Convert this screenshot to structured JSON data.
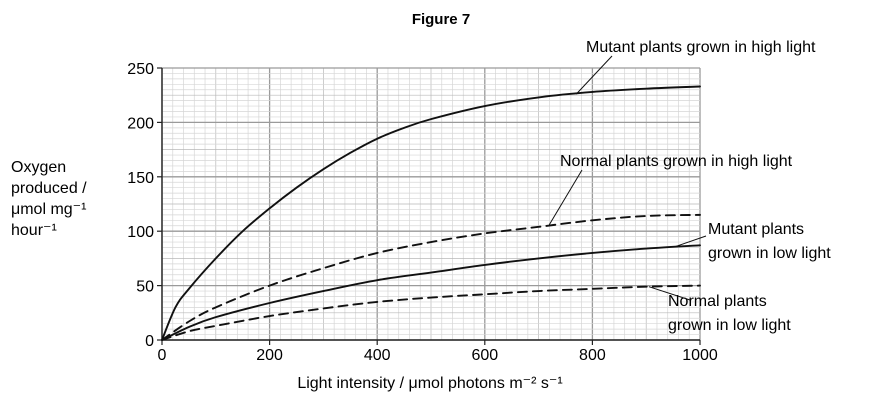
{
  "chart_data": {
    "type": "line",
    "title": "Figure 7",
    "xlabel": "Light intensity / μmol photons m⁻² s⁻¹",
    "ylabel_lines": [
      "Oxygen",
      "produced /",
      "μmol mg⁻¹",
      "hour⁻¹"
    ],
    "xlim": [
      0,
      1000
    ],
    "ylim": [
      0,
      250
    ],
    "x_ticks": [
      0,
      200,
      400,
      600,
      800,
      1000
    ],
    "y_ticks": [
      0,
      50,
      100,
      150,
      200,
      250
    ],
    "grid": true,
    "series": [
      {
        "name": "Mutant plants grown in high light",
        "label_lines": [
          "Mutant plants grown in high light"
        ],
        "style": "solid",
        "x": [
          0,
          25,
          50,
          100,
          150,
          200,
          250,
          300,
          350,
          400,
          450,
          500,
          600,
          700,
          800,
          900,
          1000
        ],
        "y": [
          0,
          30,
          47,
          75,
          100,
          121,
          140,
          157,
          172,
          185,
          195,
          203,
          215,
          223,
          228,
          231,
          233
        ]
      },
      {
        "name": "Normal plants grown in high light",
        "label_lines": [
          "Normal plants grown in high light"
        ],
        "style": "dashed",
        "x": [
          0,
          50,
          100,
          200,
          300,
          400,
          500,
          600,
          700,
          800,
          900,
          1000
        ],
        "y": [
          0,
          17,
          30,
          50,
          66,
          80,
          90,
          98,
          104,
          110,
          114,
          115
        ]
      },
      {
        "name": "Mutant plants grown in low light",
        "label_lines": [
          "Mutant plants",
          "grown in low light"
        ],
        "style": "solid",
        "x": [
          0,
          50,
          100,
          200,
          300,
          400,
          500,
          600,
          700,
          800,
          900,
          1000
        ],
        "y": [
          0,
          12,
          21,
          34,
          45,
          55,
          62,
          69,
          75,
          80,
          84,
          87
        ]
      },
      {
        "name": "Normal plants grown in low light",
        "label_lines": [
          "Normal plants",
          "grown in low light"
        ],
        "style": "dashed",
        "x": [
          0,
          50,
          100,
          200,
          300,
          400,
          500,
          600,
          700,
          800,
          900,
          1000
        ],
        "y": [
          0,
          8,
          13,
          22,
          29,
          35,
          39,
          42,
          45,
          47,
          49,
          50
        ]
      }
    ]
  }
}
